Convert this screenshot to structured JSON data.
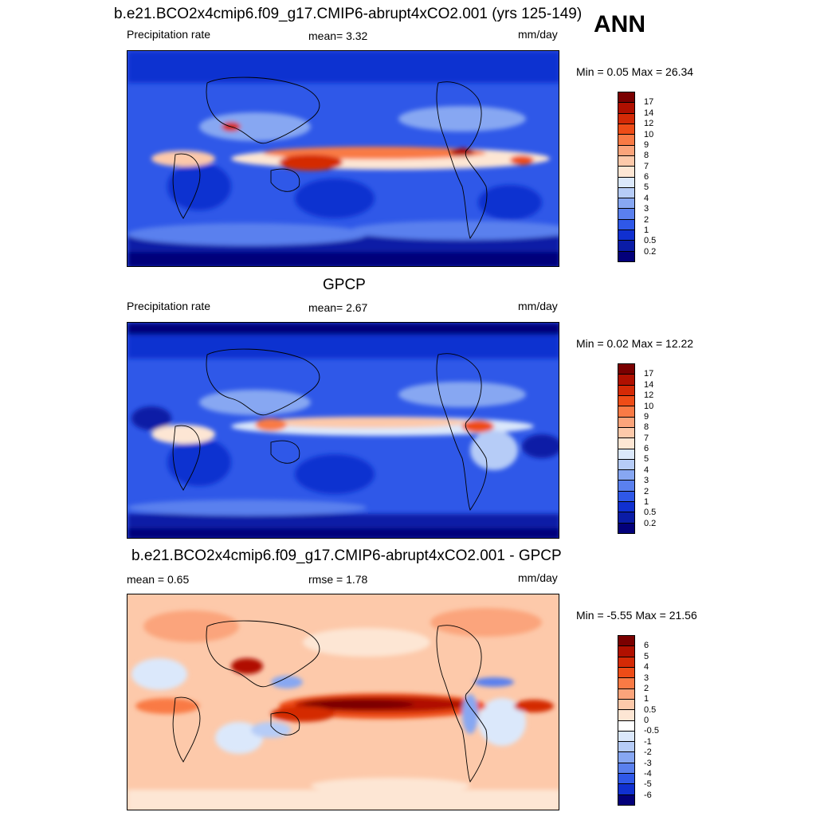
{
  "season_label": "ANN",
  "panels": [
    {
      "id": "model",
      "title": "b.e21.BCO2x4cmip6.f09_g17.CMIP6-abrupt4xCO2.001 (yrs 125-149)",
      "left_text": "Precipitation rate",
      "mid_text": "mean=   3.32",
      "units": "mm/day",
      "minmax": "Min =   0.05 Max =  26.34"
    },
    {
      "id": "obs",
      "title": "GPCP",
      "left_text": "Precipitation rate",
      "mid_text": "mean=   2.67",
      "units": "mm/day",
      "minmax": "Min =   0.02 Max =  12.22"
    },
    {
      "id": "diff",
      "title": "b.e21.BCO2x4cmip6.f09_g17.CMIP6-abrupt4xCO2.001 - GPCP",
      "left_text": "mean =   0.65",
      "mid_text": "rmse =   1.78",
      "units": "mm/day",
      "minmax": "Min =  -5.55 Max =  21.56"
    }
  ],
  "colorbars": {
    "precip": {
      "labels": [
        "17",
        "14",
        "12",
        "10",
        "9",
        "8",
        "7",
        "6",
        "5",
        "4",
        "3",
        "2",
        "1",
        "0.5",
        "0.2"
      ],
      "colors": [
        "#7a0000",
        "#b01000",
        "#d42a06",
        "#ee4c17",
        "#f97a45",
        "#fba47b",
        "#fdc9aa",
        "#fde6d4",
        "#dbe8fb",
        "#b6ccf7",
        "#87a7f2",
        "#5a80ee",
        "#2f58e8",
        "#1030d0",
        "#0a1ca6",
        "#03007a"
      ]
    },
    "diff": {
      "labels": [
        "6",
        "5",
        "4",
        "3",
        "2",
        "1",
        "0.5",
        "0",
        "-0.5",
        "-1",
        "-2",
        "-3",
        "-4",
        "-5",
        "-6"
      ],
      "colors": [
        "#7a0000",
        "#b01000",
        "#d42a06",
        "#ee4c17",
        "#f97a45",
        "#fba47b",
        "#fdc9aa",
        "#fde6d4",
        "#ffffff",
        "#dbe8fb",
        "#b6ccf7",
        "#87a7f2",
        "#5a80ee",
        "#2f58e8",
        "#1030d0",
        "#03007a"
      ]
    }
  }
}
